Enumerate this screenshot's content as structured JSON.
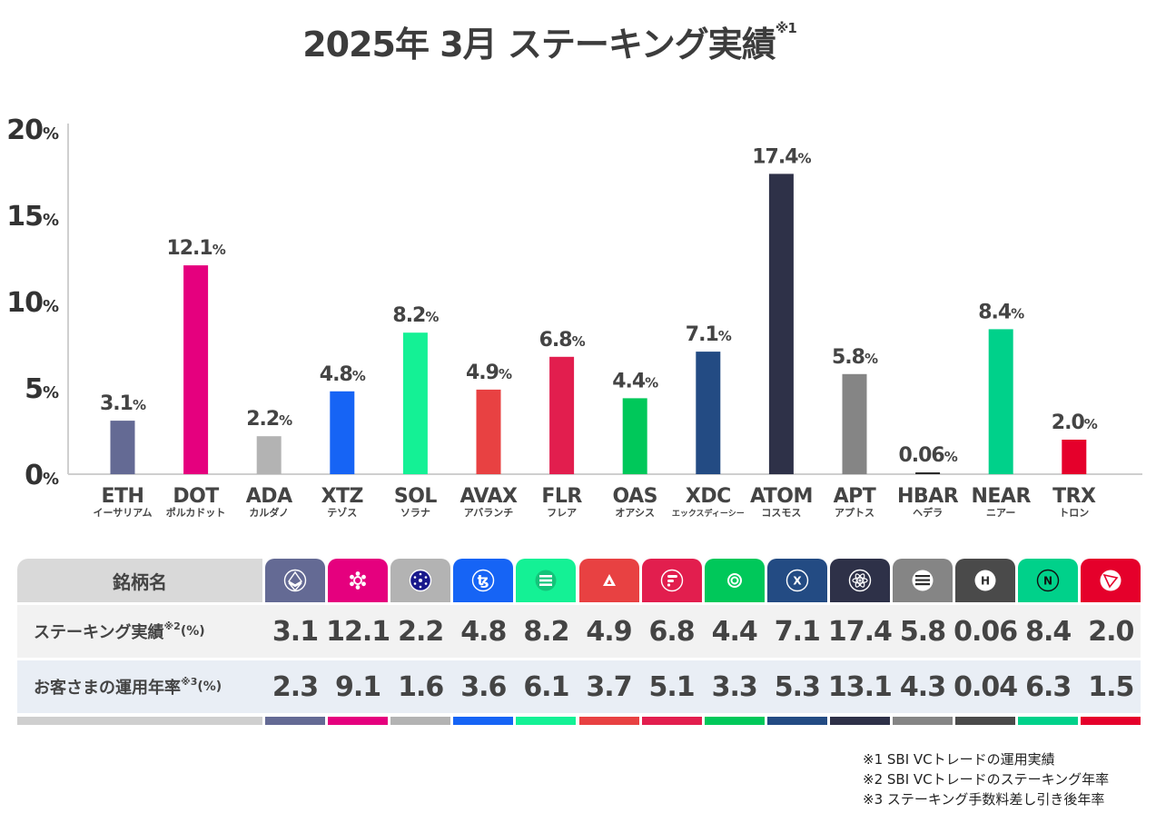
{
  "title": {
    "main": "2025年 3月  ステーキング実績",
    "note_mark": "※1"
  },
  "chart_data": {
    "type": "bar",
    "title": "2025年 3月 ステーキング実績",
    "ylim": [
      0,
      20
    ],
    "yticks": [
      {
        "value": 0,
        "label": "0",
        "unit": "%"
      },
      {
        "value": 5,
        "label": "5",
        "unit": "%"
      },
      {
        "value": 10,
        "label": "10",
        "unit": "%"
      },
      {
        "value": 15,
        "label": "15",
        "unit": "%"
      },
      {
        "value": 20,
        "label": "20",
        "unit": "%"
      }
    ],
    "categories": [
      "ETH",
      "DOT",
      "ADA",
      "XTZ",
      "SOL",
      "AVAX",
      "FLR",
      "OAS",
      "XDC",
      "ATOM",
      "APT",
      "HBAR",
      "NEAR",
      "TRX"
    ],
    "category_kana": [
      "イーサリアム",
      "ポルカドット",
      "カルダノ",
      "テゾス",
      "ソラナ",
      "アバランチ",
      "フレア",
      "オアシス",
      "エックスディーシー",
      "コスモス",
      "アプトス",
      "ヘデラ",
      "ニアー",
      "トロン"
    ],
    "values": [
      3.1,
      12.1,
      2.2,
      4.8,
      8.2,
      4.9,
      6.8,
      4.4,
      7.1,
      17.4,
      5.8,
      0.06,
      8.4,
      2.0
    ],
    "value_labels": [
      "3.1",
      "12.1",
      "2.2",
      "4.8",
      "8.2",
      "4.9",
      "6.8",
      "4.4",
      "7.1",
      "17.4",
      "5.8",
      "0.06",
      "8.4",
      "2.0"
    ],
    "value_unit": "%",
    "colors": [
      "#646a94",
      "#e5007e",
      "#b3b3b3",
      "#1664f5",
      "#14f195",
      "#e84142",
      "#e21e4e",
      "#00c85a",
      "#234b83",
      "#2e3148",
      "#858585",
      "#2b2b2b",
      "#00d18a",
      "#e5002b"
    ],
    "grid": false
  },
  "table": {
    "header_label": "銘柄名",
    "icons": [
      "eth-icon",
      "dot-icon",
      "ada-icon",
      "xtz-icon",
      "sol-icon",
      "avax-icon",
      "flr-icon",
      "oas-icon",
      "xdc-icon",
      "atom-icon",
      "apt-icon",
      "hbar-icon",
      "near-icon",
      "trx-icon"
    ],
    "header_colors": [
      "#646a94",
      "#e5007e",
      "#b3b3b3",
      "#1664f5",
      "#14f195",
      "#e84142",
      "#e21e4e",
      "#00c85a",
      "#234b83",
      "#2e3148",
      "#858585",
      "#4a4a4a",
      "#00d18a",
      "#e5002b"
    ],
    "rows": [
      {
        "label": "ステーキング実績",
        "note": "※2",
        "unit": "(%)",
        "values": [
          "3.1",
          "12.1",
          "2.2",
          "4.8",
          "8.2",
          "4.9",
          "6.8",
          "4.4",
          "7.1",
          "17.4",
          "5.8",
          "0.06",
          "8.4",
          "2.0"
        ]
      },
      {
        "label": "お客さまの運用年率",
        "note": "※3",
        "unit": "(%)",
        "values": [
          "2.3",
          "9.1",
          "1.6",
          "3.6",
          "6.1",
          "3.7",
          "5.1",
          "3.3",
          "5.3",
          "13.1",
          "4.3",
          "0.04",
          "6.3",
          "1.5"
        ]
      }
    ]
  },
  "notes": [
    "※1  SBI VCトレードの運用実績",
    "※2  SBI VCトレードのステーキング年率",
    "※3  ステーキング手数料差し引き後年率"
  ]
}
